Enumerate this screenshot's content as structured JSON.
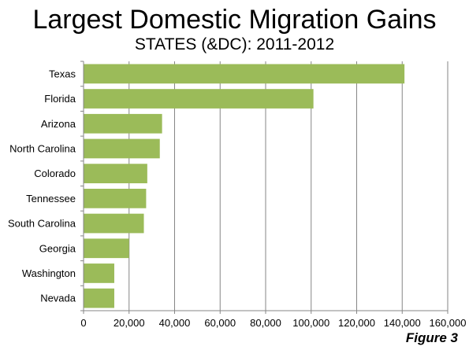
{
  "chart_data": {
    "type": "bar",
    "orientation": "horizontal",
    "title": "Largest Domestic Migration Gains",
    "subtitle": "STATES (&DC): 2011-2012",
    "categories": [
      "Texas",
      "Florida",
      "Arizona",
      "North Carolina",
      "Colorado",
      "Tennessee",
      "South Carolina",
      "Georgia",
      "Washington",
      "Nevada"
    ],
    "values": [
      141000,
      101000,
      34500,
      33500,
      28000,
      27500,
      26500,
      20000,
      13500,
      13500
    ],
    "xlim": [
      0,
      160000
    ],
    "xticks": [
      0,
      20000,
      40000,
      60000,
      80000,
      100000,
      120000,
      140000,
      160000
    ],
    "xtick_labels": [
      "0",
      "20,000",
      "40,000",
      "60,000",
      "80,000",
      "100,000",
      "120,000",
      "140,000",
      "160,000"
    ],
    "xlabel": "",
    "ylabel": "",
    "grid": "vertical",
    "legend": "none",
    "bar_color": "#9bbb59",
    "grid_color": "#868686"
  },
  "footer": "Figure 3"
}
